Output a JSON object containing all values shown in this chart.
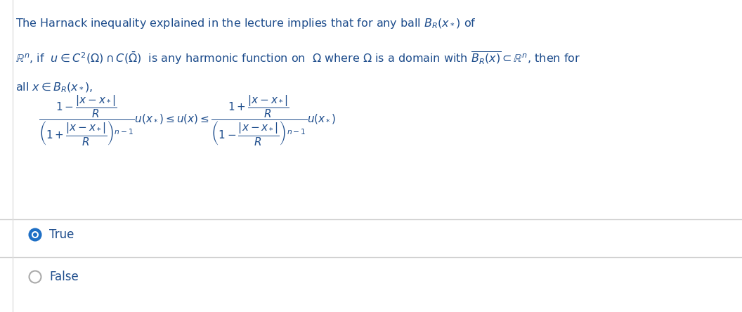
{
  "background_color": "#ffffff",
  "text_color": "#1e4d8c",
  "math_color": "#1e4d8c",
  "separator_color": "#d0d0d0",
  "radio_color_selected": "#1e6fc5",
  "radio_color_unselected": "#aaaaaa",
  "option_true_label": "True",
  "option_false_label": "False",
  "fig_width": 10.56,
  "fig_height": 4.44,
  "dpi": 100
}
